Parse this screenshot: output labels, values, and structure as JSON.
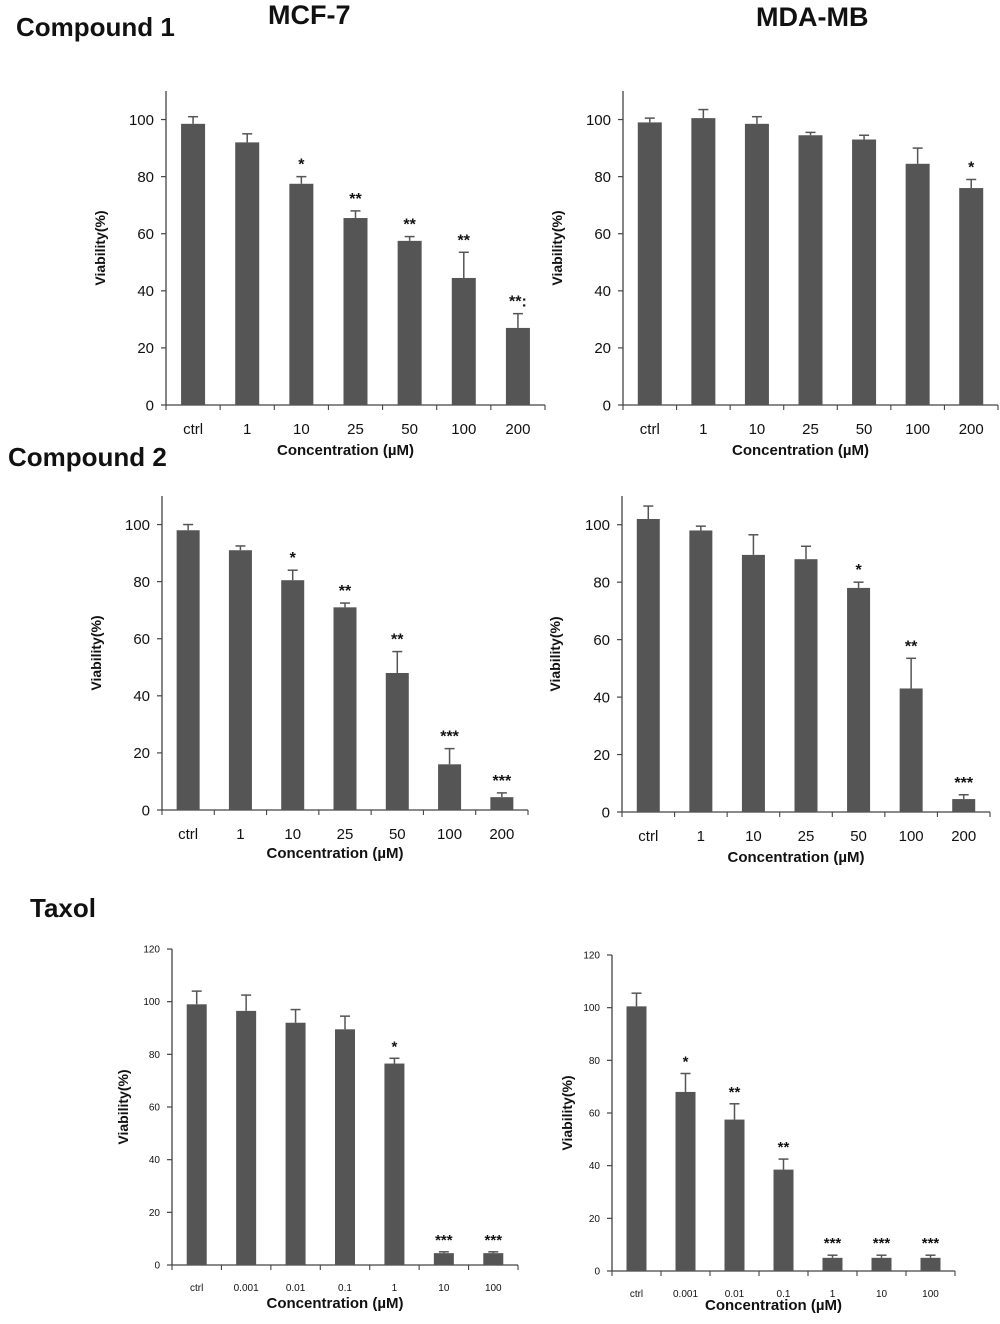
{
  "labels": {
    "columns": [
      "MCF-7",
      "MDA-MB"
    ],
    "rows": [
      "Compound 1",
      "Compound 2",
      "Taxol"
    ]
  },
  "style": {
    "bar_color": "#555555",
    "axis_color": "#444444",
    "text_color": "#111111"
  },
  "chart_data": [
    {
      "type": "bar",
      "row": "Compound 1",
      "column": "MCF-7",
      "xlabel": "Concentration (µM)",
      "ylabel": "Viability(%)",
      "categories": [
        "ctrl",
        "1",
        "10",
        "25",
        "50",
        "100",
        "200"
      ],
      "values": [
        98.5,
        92,
        77.5,
        65.5,
        57.5,
        44.5,
        27
      ],
      "errors": [
        2.5,
        3,
        2.5,
        2.5,
        1.5,
        9,
        5
      ],
      "significance": [
        "",
        "",
        "*",
        "**",
        "**",
        "**",
        "**:"
      ],
      "ylim": [
        0,
        110
      ],
      "yticks": [
        0,
        20,
        40,
        60,
        80,
        100
      ]
    },
    {
      "type": "bar",
      "row": "Compound 1",
      "column": "MDA-MB",
      "xlabel": "Concentration (µM)",
      "ylabel": "Viability(%)",
      "categories": [
        "ctrl",
        "1",
        "10",
        "25",
        "50",
        "100",
        "200"
      ],
      "values": [
        99,
        100.5,
        98.5,
        94.5,
        93,
        84.5,
        76
      ],
      "errors": [
        1.5,
        3,
        2.5,
        1,
        1.5,
        5.5,
        3
      ],
      "significance": [
        "",
        "",
        "",
        "",
        "",
        "",
        "*"
      ],
      "ylim": [
        0,
        110
      ],
      "yticks": [
        0,
        20,
        40,
        60,
        80,
        100
      ]
    },
    {
      "type": "bar",
      "row": "Compound 2",
      "column": "MCF-7",
      "xlabel": "Concentration (µM)",
      "ylabel": "Viability(%)",
      "categories": [
        "ctrl",
        "1",
        "10",
        "25",
        "50",
        "100",
        "200"
      ],
      "values": [
        98,
        91,
        80.5,
        71,
        48,
        16,
        4.5
      ],
      "errors": [
        2,
        1.5,
        3.5,
        1.5,
        7.5,
        5.5,
        1.5
      ],
      "significance": [
        "",
        "",
        "*",
        "**",
        "**",
        "***",
        "***"
      ],
      "ylim": [
        0,
        110
      ],
      "yticks": [
        0,
        20,
        40,
        60,
        80,
        100
      ]
    },
    {
      "type": "bar",
      "row": "Compound 2",
      "column": "MDA-MB",
      "xlabel": "Concentration (µM)",
      "ylabel": "Viability(%)",
      "categories": [
        "ctrl",
        "1",
        "10",
        "25",
        "50",
        "100",
        "200"
      ],
      "values": [
        102,
        98,
        89.5,
        88,
        78,
        43,
        4.5
      ],
      "errors": [
        4.5,
        1.5,
        7,
        4.5,
        2,
        10.5,
        1.5
      ],
      "significance": [
        "",
        "",
        "",
        "",
        "*",
        "**",
        "***"
      ],
      "ylim": [
        0,
        110
      ],
      "yticks": [
        0,
        20,
        40,
        60,
        80,
        100
      ]
    },
    {
      "type": "bar",
      "row": "Taxol",
      "column": "MCF-7",
      "xlabel": "Concentration (µM)",
      "ylabel": "Viability(%)",
      "categories": [
        "ctrl",
        "0.001",
        "0.01",
        "0.1",
        "1",
        "10",
        "100"
      ],
      "values": [
        99,
        96.5,
        92,
        89.5,
        76.5,
        4.5,
        4.5
      ],
      "errors": [
        5,
        6,
        5,
        5,
        2,
        0.5,
        0.5
      ],
      "significance": [
        "",
        "",
        "",
        "",
        "*",
        "***",
        "***"
      ],
      "ylim": [
        0,
        120
      ],
      "yticks": [
        0,
        20,
        40,
        60,
        80,
        100,
        120
      ]
    },
    {
      "type": "bar",
      "row": "Taxol",
      "column": "MDA-MB",
      "xlabel": "Concentration (µM)",
      "ylabel": "Viability(%)",
      "categories": [
        "ctrl",
        "0.001",
        "0.01",
        "0.1",
        "1",
        "10",
        "100"
      ],
      "values": [
        100.5,
        68,
        57.5,
        38.5,
        5,
        5,
        5
      ],
      "errors": [
        5,
        7,
        6,
        4,
        1,
        1,
        1
      ],
      "significance": [
        "",
        "*",
        "**",
        "**",
        "***",
        "***",
        "***"
      ],
      "ylim": [
        0,
        120
      ],
      "yticks": [
        0,
        20,
        40,
        60,
        80,
        100,
        120
      ]
    }
  ]
}
